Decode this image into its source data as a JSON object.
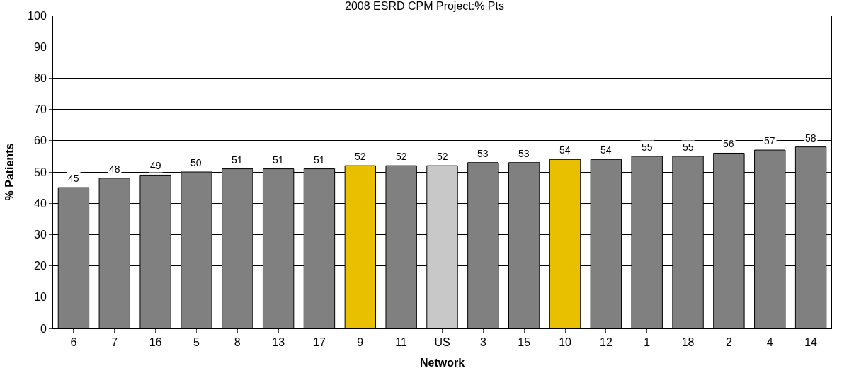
{
  "chart_data": {
    "type": "bar",
    "title": "2008 ESRD CPM Project:% Pts",
    "xlabel": "Network",
    "ylabel": "% Patients",
    "categories": [
      "6",
      "7",
      "16",
      "5",
      "8",
      "13",
      "17",
      "9",
      "11",
      "US",
      "3",
      "15",
      "10",
      "12",
      "1",
      "18",
      "2",
      "4",
      "14"
    ],
    "values": [
      45,
      48,
      49,
      50,
      51,
      51,
      51,
      52,
      52,
      52,
      53,
      53,
      54,
      54,
      55,
      55,
      56,
      57,
      58
    ],
    "colors": [
      "#808080",
      "#808080",
      "#808080",
      "#808080",
      "#808080",
      "#808080",
      "#808080",
      "#e8c000",
      "#808080",
      "#c8c8c8",
      "#808080",
      "#808080",
      "#e8c000",
      "#808080",
      "#808080",
      "#808080",
      "#808080",
      "#808080",
      "#808080"
    ],
    "ylim": [
      0,
      100
    ],
    "yticks": [
      0,
      10,
      20,
      30,
      40,
      50,
      60,
      70,
      80,
      90,
      100
    ],
    "grid": "y",
    "data_labels": true
  }
}
